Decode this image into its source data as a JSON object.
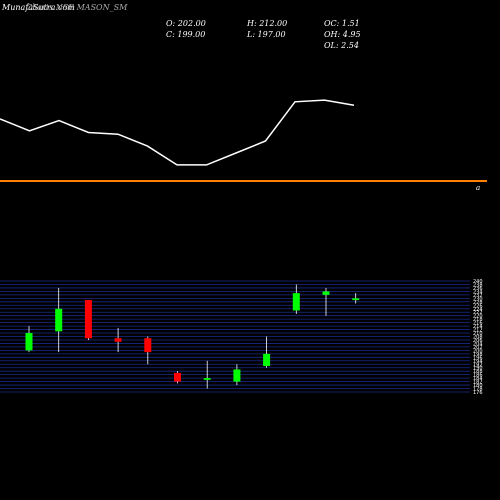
{
  "header": {
    "brand": "MunafaSutra.com",
    "title": "Charts NSE MASON_SM"
  },
  "stats": {
    "open": "O: 202.00",
    "close": "C: 199.00",
    "high": "H: 212.00",
    "low": "L: 197.00",
    "oc": "OC: 1.51",
    "oh": "OH: 4.95",
    "ol": "OL: 2.54"
  },
  "colors": {
    "background": "#000000",
    "up": "#00ff00",
    "down": "#ff0000",
    "line": "#ffffff",
    "divider": "#ff7f00",
    "grid": "#1a2a8a",
    "wick": "#ffffff"
  },
  "section_label": "a",
  "chart_data": {
    "type": "candlestick",
    "upper_line": {
      "values": [
        248,
        241,
        247,
        240,
        239,
        232,
        221,
        221,
        228,
        235,
        258,
        259,
        256
      ]
    },
    "candles": [
      {
        "open": 200.0,
        "high": 214.0,
        "low": 199.0,
        "close": 210.0
      },
      {
        "open": 211.0,
        "high": 236.0,
        "low": 199.0,
        "close": 224.0
      },
      {
        "open": 229.0,
        "high": 229.0,
        "low": 206.0,
        "close": 207.0
      },
      {
        "open": 207.0,
        "high": 213.0,
        "low": 199.0,
        "close": 205.0
      },
      {
        "open": 207.0,
        "high": 208.0,
        "low": 192.0,
        "close": 199.0
      },
      {
        "open": 187.0,
        "high": 188.0,
        "low": 181.0,
        "close": 182.0
      },
      {
        "open": 183.0,
        "high": 194.0,
        "low": 178.0,
        "close": 184.0
      },
      {
        "open": 182.0,
        "high": 192.0,
        "low": 180.0,
        "close": 189.0
      },
      {
        "open": 191.0,
        "high": 208.0,
        "low": 190.0,
        "close": 198.0
      },
      {
        "open": 223.0,
        "high": 238.0,
        "low": 221.0,
        "close": 233.0
      },
      {
        "open": 232.0,
        "high": 236.0,
        "low": 220.0,
        "close": 234.0
      },
      {
        "open": 229.0,
        "high": 233.0,
        "low": 227.0,
        "close": 230.0
      }
    ],
    "price_ylim": [
      176,
      240
    ],
    "price_ticks": [
      176,
      178,
      180,
      182,
      184,
      186,
      188,
      190,
      192,
      194,
      196,
      198,
      200,
      202,
      204,
      206,
      208,
      210,
      212,
      214,
      216,
      218,
      220,
      222,
      224,
      226,
      228,
      230,
      232,
      234,
      236,
      238,
      240
    ]
  }
}
